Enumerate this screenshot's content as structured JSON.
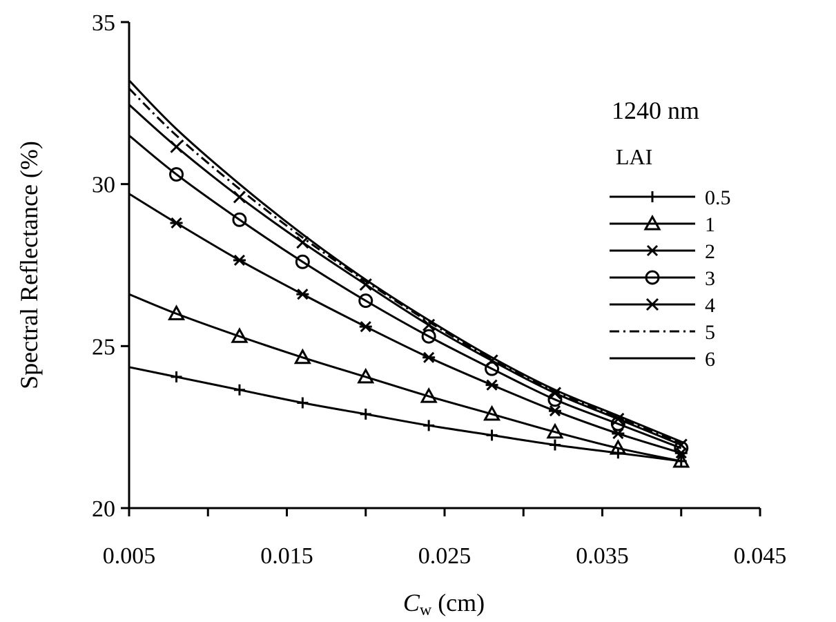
{
  "chart_data": {
    "type": "line",
    "title": "",
    "xlabel_main": "C",
    "xlabel_sub": "w",
    "xlabel_unit": " (cm)",
    "ylabel": "Spectral Reflectance (%)",
    "xlim": [
      0.005,
      0.045
    ],
    "ylim": [
      20,
      35
    ],
    "x_ticks": [
      0.005,
      0.015,
      0.025,
      0.035,
      0.045
    ],
    "x_tick_labels": [
      "0.005",
      "0.015",
      "0.025",
      "0.035",
      "0.045"
    ],
    "x_minor_ticks": [
      0.01,
      0.02,
      0.03,
      0.04
    ],
    "y_ticks": [
      20,
      25,
      30,
      35
    ],
    "y_tick_labels": [
      "20",
      "25",
      "30",
      "35"
    ],
    "grid": false,
    "legend_position": "right",
    "annotation": "1240 nm",
    "legend_title": "LAI",
    "series": [
      {
        "name": "0.5",
        "marker": "plus",
        "dash": "solid",
        "x": [
          0.005,
          0.008,
          0.012,
          0.016,
          0.02,
          0.024,
          0.028,
          0.032,
          0.036,
          0.04
        ],
        "values": [
          24.35,
          24.05,
          23.65,
          23.25,
          22.9,
          22.55,
          22.25,
          21.95,
          21.7,
          21.45
        ],
        "marker_x": [
          0.008,
          0.012,
          0.016,
          0.02,
          0.024,
          0.028,
          0.032,
          0.036,
          0.04
        ]
      },
      {
        "name": "1",
        "marker": "triangle",
        "dash": "solid",
        "x": [
          0.005,
          0.008,
          0.012,
          0.016,
          0.02,
          0.024,
          0.028,
          0.032,
          0.036,
          0.04
        ],
        "values": [
          26.6,
          26.0,
          25.3,
          24.65,
          24.05,
          23.45,
          22.9,
          22.35,
          21.85,
          21.45
        ],
        "marker_x": [
          0.008,
          0.012,
          0.016,
          0.02,
          0.024,
          0.028,
          0.032,
          0.036,
          0.04
        ]
      },
      {
        "name": "2",
        "marker": "asterisk",
        "dash": "solid",
        "x": [
          0.005,
          0.008,
          0.012,
          0.016,
          0.02,
          0.024,
          0.028,
          0.032,
          0.036,
          0.04
        ],
        "values": [
          29.7,
          28.8,
          27.65,
          26.6,
          25.6,
          24.65,
          23.8,
          23.0,
          22.3,
          21.7
        ],
        "marker_x": [
          0.008,
          0.012,
          0.016,
          0.02,
          0.024,
          0.028,
          0.032,
          0.036,
          0.04
        ]
      },
      {
        "name": "3",
        "marker": "circle",
        "dash": "solid",
        "x": [
          0.005,
          0.008,
          0.012,
          0.016,
          0.02,
          0.024,
          0.028,
          0.032,
          0.036,
          0.04
        ],
        "values": [
          31.5,
          30.3,
          28.9,
          27.6,
          26.4,
          25.3,
          24.3,
          23.35,
          22.6,
          21.85
        ],
        "marker_x": [
          0.008,
          0.012,
          0.016,
          0.02,
          0.024,
          0.028,
          0.032,
          0.036,
          0.04
        ]
      },
      {
        "name": "4",
        "marker": "x",
        "dash": "solid",
        "x": [
          0.005,
          0.008,
          0.012,
          0.016,
          0.02,
          0.024,
          0.028,
          0.032,
          0.036,
          0.04
        ],
        "values": [
          32.45,
          31.15,
          29.6,
          28.2,
          26.9,
          25.65,
          24.55,
          23.55,
          22.75,
          21.95
        ],
        "marker_x": [
          0.008,
          0.012,
          0.016,
          0.02,
          0.024,
          0.028,
          0.032,
          0.036,
          0.04
        ]
      },
      {
        "name": "5",
        "marker": "none",
        "dash": "dashdot",
        "x": [
          0.005,
          0.008,
          0.012,
          0.016,
          0.02,
          0.024,
          0.028,
          0.032,
          0.036,
          0.04
        ],
        "values": [
          32.95,
          31.5,
          29.85,
          28.35,
          27.0,
          25.75,
          24.6,
          23.6,
          22.8,
          22.0
        ],
        "marker_x": []
      },
      {
        "name": "6",
        "marker": "none",
        "dash": "solid",
        "x": [
          0.005,
          0.008,
          0.012,
          0.016,
          0.02,
          0.024,
          0.028,
          0.032,
          0.036,
          0.04
        ],
        "values": [
          33.2,
          31.7,
          30.0,
          28.45,
          27.05,
          25.8,
          24.65,
          23.65,
          22.85,
          22.05
        ],
        "marker_x": []
      }
    ]
  }
}
